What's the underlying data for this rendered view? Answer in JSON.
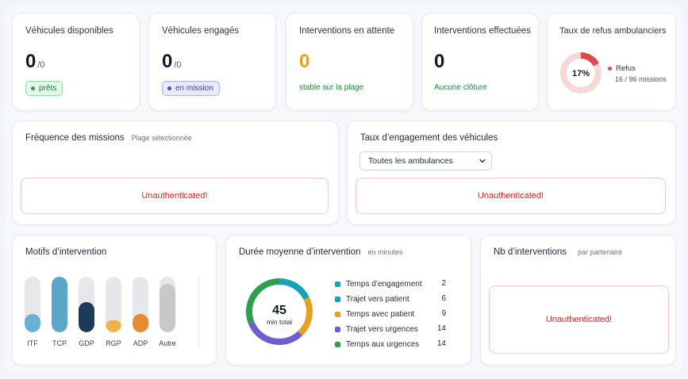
{
  "kpis": {
    "disponibles": {
      "title": "Véhicules disponibles",
      "value": "0",
      "denominator": "/0",
      "badge": "prêts"
    },
    "engages": {
      "title": "Véhicules engagés",
      "value": "0",
      "denominator": "/0",
      "badge": "en mission"
    },
    "attente": {
      "title": "Interventions en attente",
      "value": "0",
      "sub": "stable sur la plage"
    },
    "effectuees": {
      "title": "Interventions effectuées",
      "value": "0",
      "sub": "Aucune clôture"
    },
    "refus": {
      "title": "Taux de refus ambulanciers",
      "percent_label": "17%",
      "percent": 17,
      "legend": "Refus",
      "detail": "16 / 96 missions"
    }
  },
  "frequence": {
    "title": "Fréquence des missions",
    "hint": "Plage sélectionnée",
    "error": "Unauthenticated!"
  },
  "engagement": {
    "title": "Taux d’engagement des véhicules",
    "select_value": "Toutes les ambulances",
    "error": "Unauthenticated!"
  },
  "motifs": {
    "title": "Motifs d’intervention"
  },
  "duree": {
    "title": "Durée moyenne d’intervention",
    "hint": "en minutes",
    "total": "45",
    "total_label": "min total",
    "items": [
      {
        "label": "Temps d’engagement",
        "value": "2",
        "color": "#17a2b8"
      },
      {
        "label": "Trajet vers patient",
        "value": "6",
        "color": "#17a2b8"
      },
      {
        "label": "Temps avec patient",
        "value": "9",
        "color": "#e8a020"
      },
      {
        "label": "Trajet vers urgences",
        "value": "14",
        "color": "#6b5fcf"
      },
      {
        "label": "Temps aux urgences",
        "value": "14",
        "color": "#2e9e4f"
      }
    ]
  },
  "partenaires": {
    "title": "Nb d’interventions",
    "hint": "par partenaire",
    "error": "Unauthenticated!"
  },
  "colors": {
    "refus_accent": "#e04848",
    "refus_track": "#f8d7d7"
  },
  "chart_data": {
    "type": "bar",
    "categories": [
      "ITF",
      "TCP",
      "GDP",
      "RGP",
      "ADP",
      "Autre"
    ],
    "values": [
      0.33,
      1.0,
      0.55,
      0.22,
      0.33,
      0.87
    ],
    "colors": [
      "#6aafd6",
      "#5aa8c9",
      "#1e3a5a",
      "#f2b24a",
      "#e88a30",
      "#c8c8ca"
    ],
    "ylim": [
      0,
      1
    ]
  }
}
